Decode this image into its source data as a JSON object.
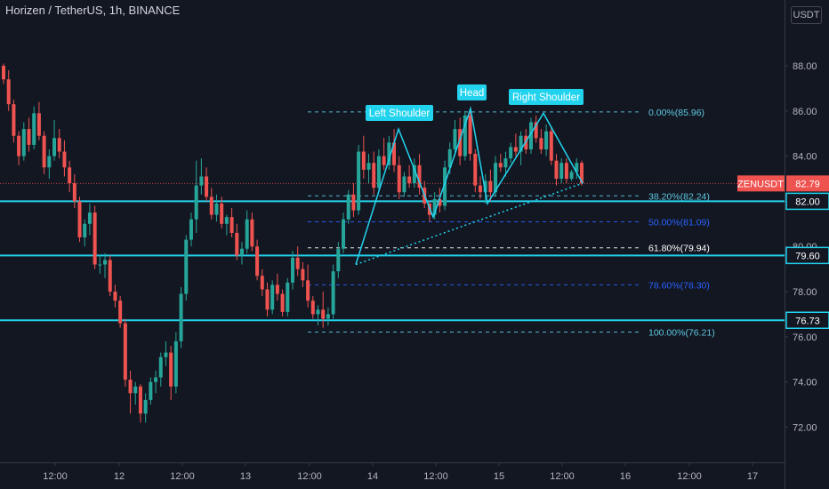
{
  "header": {
    "title": "Horizen / TetherUS, 1h, BINANCE",
    "currency_button": "USDT"
  },
  "colors": {
    "background": "#131722",
    "up": "#26a69a",
    "down": "#ef5350",
    "pattern": "#22d3ee",
    "fib_dim": "#2962ff",
    "grid": "#363a45",
    "axis_text": "#b2b5be"
  },
  "chart_data": {
    "type": "candlestick",
    "symbol": "ZENUSDT",
    "last_price": 82.79,
    "y_ticks": [
      88.0,
      86.0,
      84.0,
      82.0,
      80.0,
      78.0,
      76.0,
      74.0,
      72.0
    ],
    "ylim": [
      71.0,
      89.0
    ],
    "x_ticks": [
      "12:00",
      "12",
      "12:00",
      "13",
      "12:00",
      "14",
      "12:00",
      "15",
      "12:00",
      "16",
      "12:00",
      "17"
    ],
    "horizontal_levels": [
      82.0,
      79.6,
      76.73
    ],
    "fib_levels": [
      {
        "label": "0.00%(85.96)",
        "value": 85.96
      },
      {
        "label": "38.20%(82.24)",
        "value": 82.24
      },
      {
        "label": "50.00%(81.09)",
        "value": 81.09
      },
      {
        "label": "61.80%(79.94)",
        "value": 79.94
      },
      {
        "label": "78.60%(78.30)",
        "value": 78.3
      },
      {
        "label": "100.00%(76.21)",
        "value": 76.21
      }
    ],
    "annotations": [
      "Left Shoulder",
      "Head",
      "Right Shoulder"
    ],
    "price_labels": [
      {
        "text": "ZENUSDT",
        "value": 82.79
      },
      {
        "text": "82.79",
        "value": 82.79
      },
      {
        "text": "82.00",
        "value": 82.0
      },
      {
        "text": "79.60",
        "value": 79.6
      },
      {
        "text": "76.73",
        "value": 76.73
      }
    ],
    "candles": [
      [
        88.0,
        88.1,
        87.2,
        87.4
      ],
      [
        87.4,
        87.8,
        86.0,
        86.3
      ],
      [
        86.3,
        86.5,
        84.6,
        84.9
      ],
      [
        84.9,
        85.1,
        83.6,
        84.0
      ],
      [
        84.0,
        85.5,
        83.8,
        85.2
      ],
      [
        85.2,
        85.7,
        84.2,
        84.5
      ],
      [
        84.5,
        86.2,
        84.3,
        85.9
      ],
      [
        85.9,
        86.4,
        84.7,
        84.9
      ],
      [
        84.9,
        85.1,
        83.2,
        83.5
      ],
      [
        83.5,
        84.3,
        83.0,
        84.0
      ],
      [
        84.0,
        85.6,
        83.8,
        84.8
      ],
      [
        84.8,
        85.2,
        83.9,
        84.2
      ],
      [
        84.2,
        84.7,
        83.1,
        83.5
      ],
      [
        83.5,
        83.8,
        82.4,
        82.8
      ],
      [
        82.8,
        83.2,
        81.7,
        82.0
      ],
      [
        82.0,
        82.2,
        80.2,
        80.4
      ],
      [
        80.4,
        81.2,
        80.0,
        81.0
      ],
      [
        81.0,
        81.9,
        80.5,
        81.5
      ],
      [
        81.5,
        81.8,
        79.0,
        79.2
      ],
      [
        79.2,
        79.6,
        78.8,
        79.2
      ],
      [
        79.2,
        79.7,
        78.6,
        79.4
      ],
      [
        79.4,
        79.6,
        77.8,
        78.0
      ],
      [
        78.0,
        78.3,
        77.3,
        77.6
      ],
      [
        77.6,
        77.8,
        76.4,
        76.6
      ],
      [
        76.6,
        76.8,
        73.8,
        74.1
      ],
      [
        74.1,
        74.5,
        72.6,
        73.5
      ],
      [
        73.5,
        74.0,
        73.0,
        73.8
      ],
      [
        73.8,
        73.9,
        72.2,
        72.6
      ],
      [
        72.6,
        73.5,
        72.2,
        73.2
      ],
      [
        73.2,
        74.2,
        73.0,
        74.0
      ],
      [
        74.0,
        74.5,
        73.5,
        74.2
      ],
      [
        74.2,
        75.3,
        73.8,
        75.1
      ],
      [
        75.1,
        75.8,
        74.7,
        75.3
      ],
      [
        75.3,
        75.6,
        73.2,
        73.8
      ],
      [
        73.8,
        76.2,
        73.5,
        75.8
      ],
      [
        75.8,
        78.2,
        75.5,
        77.9
      ],
      [
        77.9,
        80.5,
        77.6,
        80.3
      ],
      [
        80.3,
        81.5,
        80.0,
        81.2
      ],
      [
        81.2,
        83.8,
        80.6,
        82.7
      ],
      [
        82.7,
        83.9,
        82.3,
        83.1
      ],
      [
        83.1,
        83.5,
        82.0,
        82.2
      ],
      [
        82.2,
        82.6,
        81.2,
        81.4
      ],
      [
        81.4,
        82.3,
        81.1,
        81.9
      ],
      [
        81.9,
        82.2,
        80.8,
        81.0
      ],
      [
        81.0,
        81.4,
        80.5,
        81.3
      ],
      [
        81.3,
        81.7,
        80.4,
        80.6
      ],
      [
        80.6,
        81.0,
        79.4,
        79.6
      ],
      [
        79.6,
        80.2,
        79.2,
        79.9
      ],
      [
        79.9,
        81.6,
        79.7,
        81.2
      ],
      [
        81.2,
        81.5,
        79.8,
        80.0
      ],
      [
        80.0,
        80.3,
        78.5,
        78.7
      ],
      [
        78.7,
        79.0,
        77.8,
        78.1
      ],
      [
        78.1,
        78.4,
        76.9,
        77.2
      ],
      [
        77.2,
        78.5,
        77.0,
        78.3
      ],
      [
        78.3,
        78.8,
        77.6,
        77.9
      ],
      [
        77.9,
        78.1,
        76.9,
        77.1
      ],
      [
        77.1,
        78.6,
        76.9,
        78.4
      ],
      [
        78.4,
        79.8,
        78.1,
        79.5
      ],
      [
        79.5,
        80.0,
        78.7,
        79.0
      ],
      [
        79.0,
        79.3,
        78.2,
        78.5
      ],
      [
        78.5,
        79.2,
        77.3,
        77.6
      ],
      [
        77.6,
        77.8,
        76.8,
        77.0
      ],
      [
        77.0,
        77.4,
        76.5,
        77.2
      ],
      [
        77.2,
        78.0,
        76.4,
        76.8
      ],
      [
        76.8,
        77.3,
        76.5,
        77.0
      ],
      [
        77.0,
        79.2,
        76.8,
        78.9
      ],
      [
        78.9,
        80.2,
        78.6,
        79.9
      ],
      [
        79.9,
        81.5,
        79.7,
        81.2
      ],
      [
        81.2,
        82.5,
        81.0,
        82.3
      ],
      [
        82.3,
        82.8,
        81.3,
        81.6
      ],
      [
        81.6,
        84.5,
        81.4,
        84.2
      ],
      [
        84.2,
        84.9,
        83.0,
        83.4
      ],
      [
        83.4,
        84.1,
        82.8,
        83.7
      ],
      [
        83.7,
        84.2,
        82.3,
        82.6
      ],
      [
        82.6,
        84.3,
        82.4,
        84.0
      ],
      [
        84.0,
        84.8,
        83.4,
        83.6
      ],
      [
        83.6,
        84.9,
        83.4,
        84.6
      ],
      [
        84.6,
        85.2,
        83.3,
        83.6
      ],
      [
        83.6,
        84.0,
        82.1,
        82.4
      ],
      [
        82.4,
        83.3,
        82.2,
        83.1
      ],
      [
        83.1,
        83.6,
        82.6,
        82.8
      ],
      [
        82.8,
        83.9,
        82.6,
        83.6
      ],
      [
        83.6,
        84.1,
        82.3,
        82.6
      ],
      [
        82.6,
        82.9,
        81.7,
        81.9
      ],
      [
        81.9,
        82.0,
        81.1,
        81.4
      ],
      [
        81.4,
        82.4,
        81.2,
        82.1
      ],
      [
        82.1,
        82.6,
        81.5,
        81.8
      ],
      [
        81.8,
        83.8,
        81.6,
        83.5
      ],
      [
        83.5,
        84.6,
        83.2,
        84.3
      ],
      [
        84.3,
        85.6,
        84.0,
        85.2
      ],
      [
        85.2,
        85.7,
        83.6,
        84.0
      ],
      [
        84.0,
        86.0,
        83.8,
        85.8
      ],
      [
        85.8,
        86.1,
        83.8,
        84.1
      ],
      [
        84.1,
        84.3,
        82.4,
        82.7
      ],
      [
        82.7,
        83.1,
        82.1,
        82.4
      ],
      [
        82.4,
        83.2,
        81.9,
        82.9
      ],
      [
        82.9,
        83.4,
        82.0,
        82.4
      ],
      [
        82.4,
        84.0,
        82.2,
        83.7
      ],
      [
        83.7,
        84.1,
        83.3,
        83.5
      ],
      [
        83.5,
        84.2,
        83.1,
        83.9
      ],
      [
        83.9,
        84.6,
        83.7,
        84.4
      ],
      [
        84.4,
        85.0,
        84.0,
        84.2
      ],
      [
        84.2,
        85.1,
        83.6,
        84.9
      ],
      [
        84.9,
        85.2,
        84.1,
        84.3
      ],
      [
        84.3,
        85.7,
        84.1,
        85.5
      ],
      [
        85.5,
        85.8,
        84.6,
        84.8
      ],
      [
        84.8,
        85.2,
        84.1,
        84.3
      ],
      [
        84.3,
        85.4,
        84.0,
        85.1
      ],
      [
        85.1,
        85.3,
        83.6,
        83.8
      ],
      [
        83.8,
        84.1,
        82.7,
        83.0
      ],
      [
        83.0,
        83.9,
        82.8,
        83.7
      ],
      [
        83.7,
        83.9,
        82.8,
        83.0
      ],
      [
        83.0,
        83.4,
        82.9,
        83.3
      ],
      [
        83.3,
        83.9,
        83.0,
        83.7
      ],
      [
        83.7,
        83.8,
        82.7,
        82.79
      ]
    ]
  }
}
